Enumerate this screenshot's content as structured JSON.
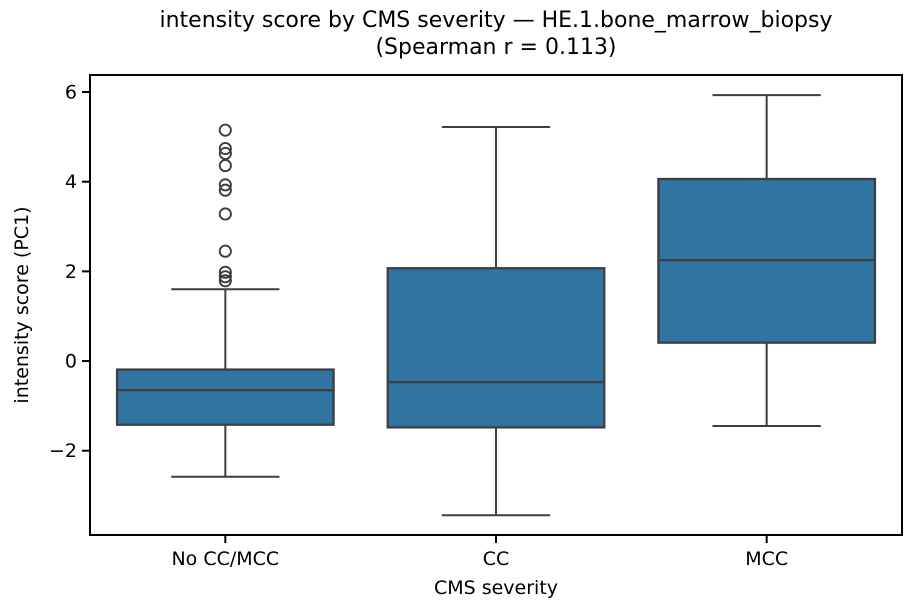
{
  "title": {
    "line1": "intensity score by CMS severity — HE.1.bone_marrow_biopsy",
    "line2": "(Spearman r = 0.113)"
  },
  "axes": {
    "xlabel": "CMS severity",
    "ylabel": "intensity score (PC1)",
    "ytick_values": [
      6,
      4,
      2,
      0,
      -2
    ],
    "ytick_labels": [
      "6",
      "4",
      "2",
      "0",
      "−2"
    ],
    "ylim": [
      -3.88,
      6.38
    ],
    "grid": false
  },
  "chart_data": {
    "type": "box",
    "title": "intensity score by CMS severity — HE.1.bone_marrow_biopsy (Spearman r = 0.113)",
    "xlabel": "CMS severity",
    "ylabel": "intensity score (PC1)",
    "ylim": [
      -3.88,
      6.38
    ],
    "categories": [
      "No CC/MCC",
      "CC",
      "MCC"
    ],
    "boxes": [
      {
        "label": "No CC/MCC",
        "whisker_low": -2.58,
        "q1": -1.42,
        "median": -0.65,
        "q3": -0.19,
        "whisker_high": 1.6,
        "outliers": [
          1.79,
          1.88,
          1.98,
          2.45,
          3.28,
          3.81,
          3.93,
          4.36,
          4.63,
          4.74,
          5.15
        ]
      },
      {
        "label": "CC",
        "whisker_low": -3.44,
        "q1": -1.48,
        "median": -0.47,
        "q3": 2.07,
        "whisker_high": 5.22,
        "outliers": []
      },
      {
        "label": "MCC",
        "whisker_low": -1.45,
        "q1": 0.41,
        "median": 2.25,
        "q3": 4.06,
        "whisker_high": 5.93,
        "outliers": []
      }
    ],
    "legend": null
  },
  "colors": {
    "box_fill": "#3274a1",
    "box_line": "#3b3e42",
    "spine": "#000000",
    "text": "#000000",
    "background": "#ffffff"
  }
}
